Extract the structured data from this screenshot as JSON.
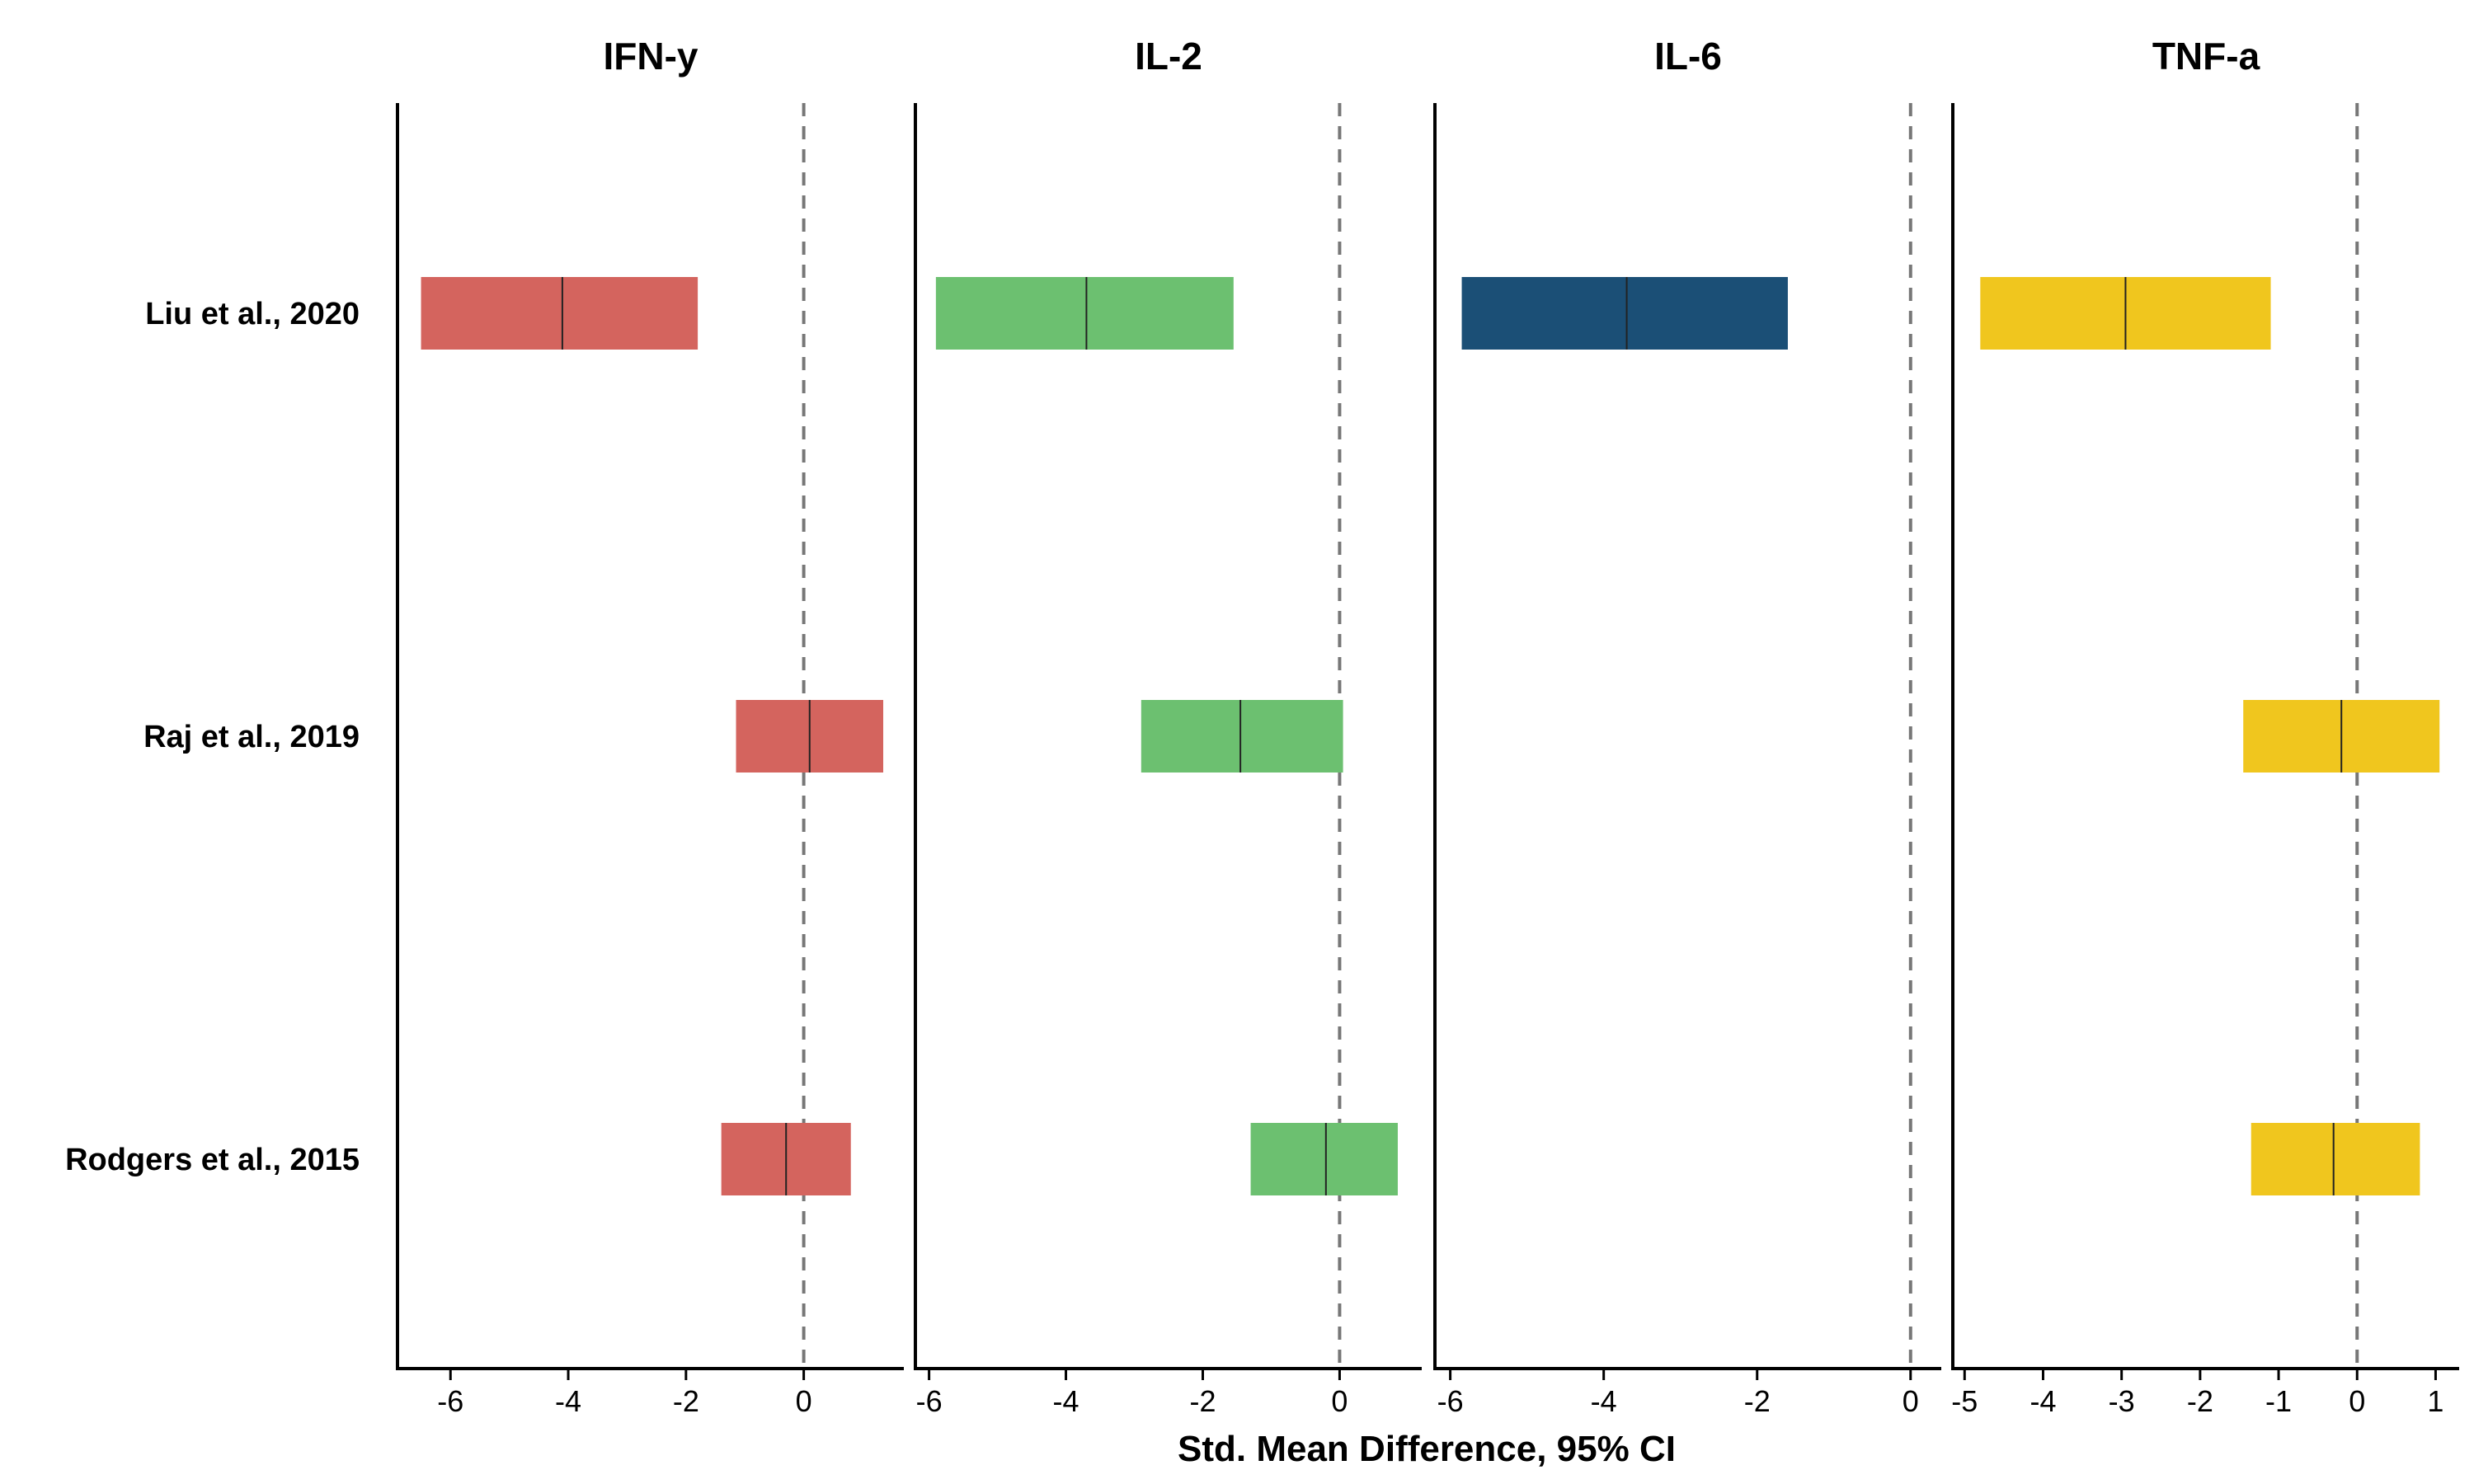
{
  "chart_data": {
    "type": "forest",
    "xlabel": "Std. Mean Difference, 95% CI",
    "studies": [
      "Liu et al., 2020",
      "Raj et al., 2019",
      "Rodgers et al., 2015"
    ],
    "panels": [
      {
        "title": "IFN-y",
        "color": "#D4645E",
        "xlim": [
          -6.9,
          1.7
        ],
        "ticks": [
          -6,
          -4,
          -2,
          0
        ],
        "tick_labels": [
          "-6",
          "-4",
          "-2",
          "0"
        ],
        "rows": [
          {
            "study": "Liu et al., 2020",
            "lower": -6.5,
            "estimate": -4.1,
            "upper": -1.8
          },
          {
            "study": "Raj et al., 2019",
            "lower": -1.15,
            "estimate": 0.1,
            "upper": 1.35
          },
          {
            "study": "Rodgers et al., 2015",
            "lower": -1.4,
            "estimate": -0.3,
            "upper": 0.8
          }
        ]
      },
      {
        "title": "IL-2",
        "color": "#6CC070",
        "xlim": [
          -6.2,
          1.2
        ],
        "ticks": [
          -6,
          -4,
          -2,
          0
        ],
        "tick_labels": [
          "-6",
          "-4",
          "-2",
          "0"
        ],
        "rows": [
          {
            "study": "Liu et al., 2020",
            "lower": -5.9,
            "estimate": -3.7,
            "upper": -1.55
          },
          {
            "study": "Raj et al., 2019",
            "lower": -2.9,
            "estimate": -1.45,
            "upper": 0.05
          },
          {
            "study": "Rodgers et al., 2015",
            "lower": -1.3,
            "estimate": -0.2,
            "upper": 0.85
          }
        ]
      },
      {
        "title": "IL-6",
        "color": "#1B4F76",
        "xlim": [
          -6.2,
          0.4
        ],
        "ticks": [
          -6,
          -4,
          -2,
          0
        ],
        "tick_labels": [
          "-6",
          "-4",
          "-2",
          "0"
        ],
        "rows": [
          {
            "study": "Liu et al., 2020",
            "lower": -5.85,
            "estimate": -3.7,
            "upper": -1.6
          }
        ]
      },
      {
        "title": "TNF-a",
        "color": "#F0C61E",
        "xlim": [
          -5.15,
          1.3
        ],
        "ticks": [
          -5,
          -4,
          -3,
          -2,
          -1,
          0,
          1
        ],
        "tick_labels": [
          "-5",
          "-4",
          "-3",
          "-2",
          "-1",
          "0",
          "1"
        ],
        "rows": [
          {
            "study": "Liu et al., 2020",
            "lower": -4.8,
            "estimate": -2.95,
            "upper": -1.1
          },
          {
            "study": "Raj et al., 2019",
            "lower": -1.45,
            "estimate": -0.2,
            "upper": 1.05
          },
          {
            "study": "Rodgers et al., 2015",
            "lower": -1.35,
            "estimate": -0.3,
            "upper": 0.8
          }
        ]
      }
    ]
  }
}
